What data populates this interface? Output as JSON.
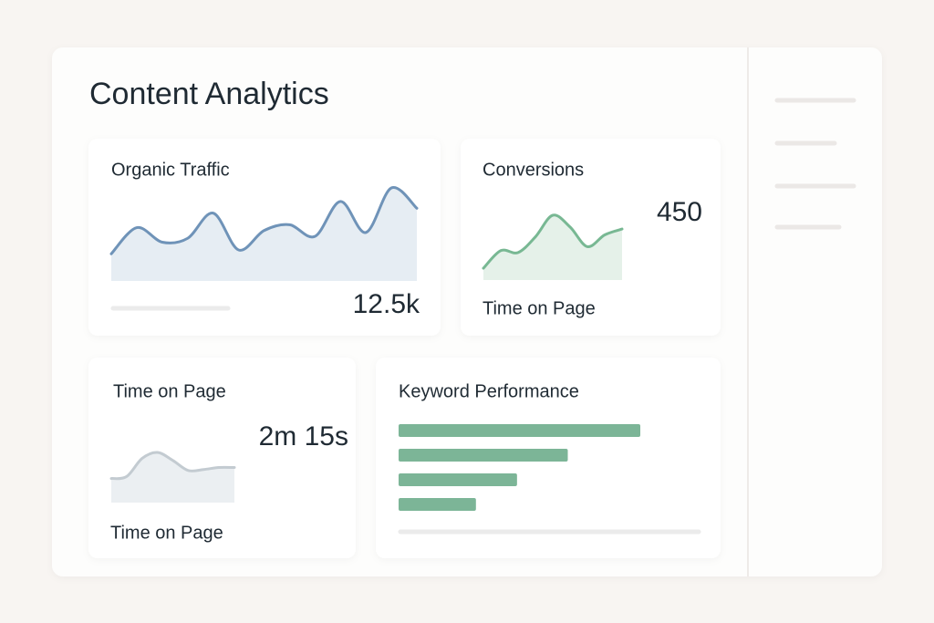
{
  "header": {
    "title": "Content Analytics"
  },
  "cards": [
    {
      "title": "Organic Traffic",
      "value": "12.5k",
      "chart": {
        "type": "area",
        "color": "#6f93b8",
        "fill": "#e6edf3",
        "values": [
          28,
          55,
          40,
          44,
          70,
          32,
          52,
          58,
          46,
          82,
          50,
          96,
          75
        ]
      }
    },
    {
      "title": "Conversions",
      "value": "450",
      "label": "Time on Page",
      "chart": {
        "type": "area",
        "color": "#78b893",
        "fill": "#e5f1e9",
        "values": [
          12,
          30,
          28,
          44,
          66,
          54,
          34,
          46,
          52
        ]
      }
    },
    {
      "title": "Time on Page",
      "value": "2m 15s",
      "label": "Time on Page",
      "chart": {
        "type": "area",
        "color": "#c3cbd1",
        "fill": "#ebeff2",
        "values": [
          24,
          26,
          44,
          50,
          42,
          32,
          33,
          35,
          35
        ]
      }
    },
    {
      "title": "Keyword Performance",
      "chart": {
        "type": "bar",
        "color": "#7cb597",
        "values": [
          100,
          70,
          49,
          32
        ]
      }
    }
  ]
}
